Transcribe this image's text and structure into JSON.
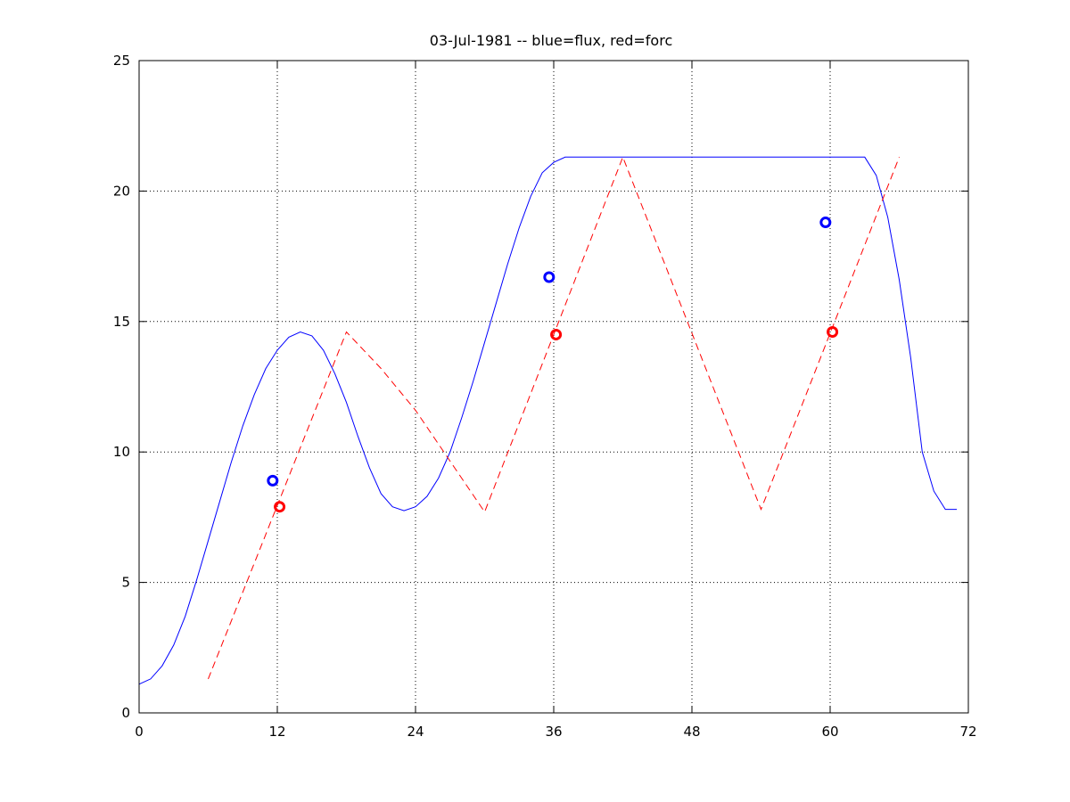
{
  "chart_data": {
    "type": "line",
    "title": "03-Jul-1981 -- blue=flux, red=forc",
    "xlabel": "",
    "ylabel": "",
    "xlim": [
      0,
      72
    ],
    "ylim": [
      0,
      25
    ],
    "xticks": [
      0,
      12,
      24,
      36,
      48,
      60,
      72
    ],
    "yticks": [
      0,
      5,
      10,
      15,
      20,
      25
    ],
    "grid": true,
    "colors": {
      "flux": "#0000ff",
      "forc": "#ff0000",
      "axes": "#000000"
    },
    "series": [
      {
        "style": "solid",
        "color": "#0000ff",
        "x": [
          0,
          1,
          2,
          3,
          4,
          5,
          6,
          7,
          8,
          9,
          10,
          11,
          12,
          13,
          14,
          15,
          16,
          17,
          18,
          19,
          20,
          21,
          22,
          23,
          24,
          25,
          26,
          27,
          28,
          29,
          30,
          31,
          32,
          33,
          34,
          35,
          36,
          37,
          38,
          39,
          40,
          42,
          44,
          46,
          48,
          50,
          52,
          54,
          56,
          58,
          60,
          62,
          63,
          64,
          65,
          66,
          67,
          68,
          69,
          70,
          71
        ],
        "y": [
          1.1,
          1.3,
          1.8,
          2.6,
          3.7,
          5.1,
          6.6,
          8.1,
          9.6,
          11.0,
          12.2,
          13.2,
          13.9,
          14.4,
          14.6,
          14.45,
          13.9,
          13.0,
          11.9,
          10.6,
          9.4,
          8.4,
          7.9,
          7.75,
          7.9,
          8.3,
          9.0,
          10.0,
          11.3,
          12.7,
          14.2,
          15.7,
          17.2,
          18.6,
          19.8,
          20.7,
          21.1,
          21.3,
          21.3,
          21.3,
          21.3,
          21.3,
          21.3,
          21.3,
          21.3,
          21.3,
          21.3,
          21.3,
          21.3,
          21.3,
          21.3,
          21.3,
          21.3,
          20.6,
          19.0,
          16.6,
          13.6,
          10.0,
          8.5,
          7.8,
          7.8
        ]
      },
      {
        "style": "dashed",
        "color": "#ff0000",
        "x": [
          6,
          18,
          21,
          24,
          30,
          42,
          54,
          66
        ],
        "y": [
          1.3,
          14.6,
          13.2,
          11.6,
          7.7,
          21.3,
          7.8,
          21.3
        ]
      },
      {
        "style": "circle-markers",
        "color": "#0000ff",
        "x": [
          11.6,
          35.6,
          59.6
        ],
        "y": [
          8.9,
          16.7,
          18.8
        ]
      },
      {
        "style": "circle-markers",
        "color": "#ff0000",
        "x": [
          12.2,
          36.2,
          60.2
        ],
        "y": [
          7.9,
          14.5,
          14.6
        ]
      }
    ]
  }
}
